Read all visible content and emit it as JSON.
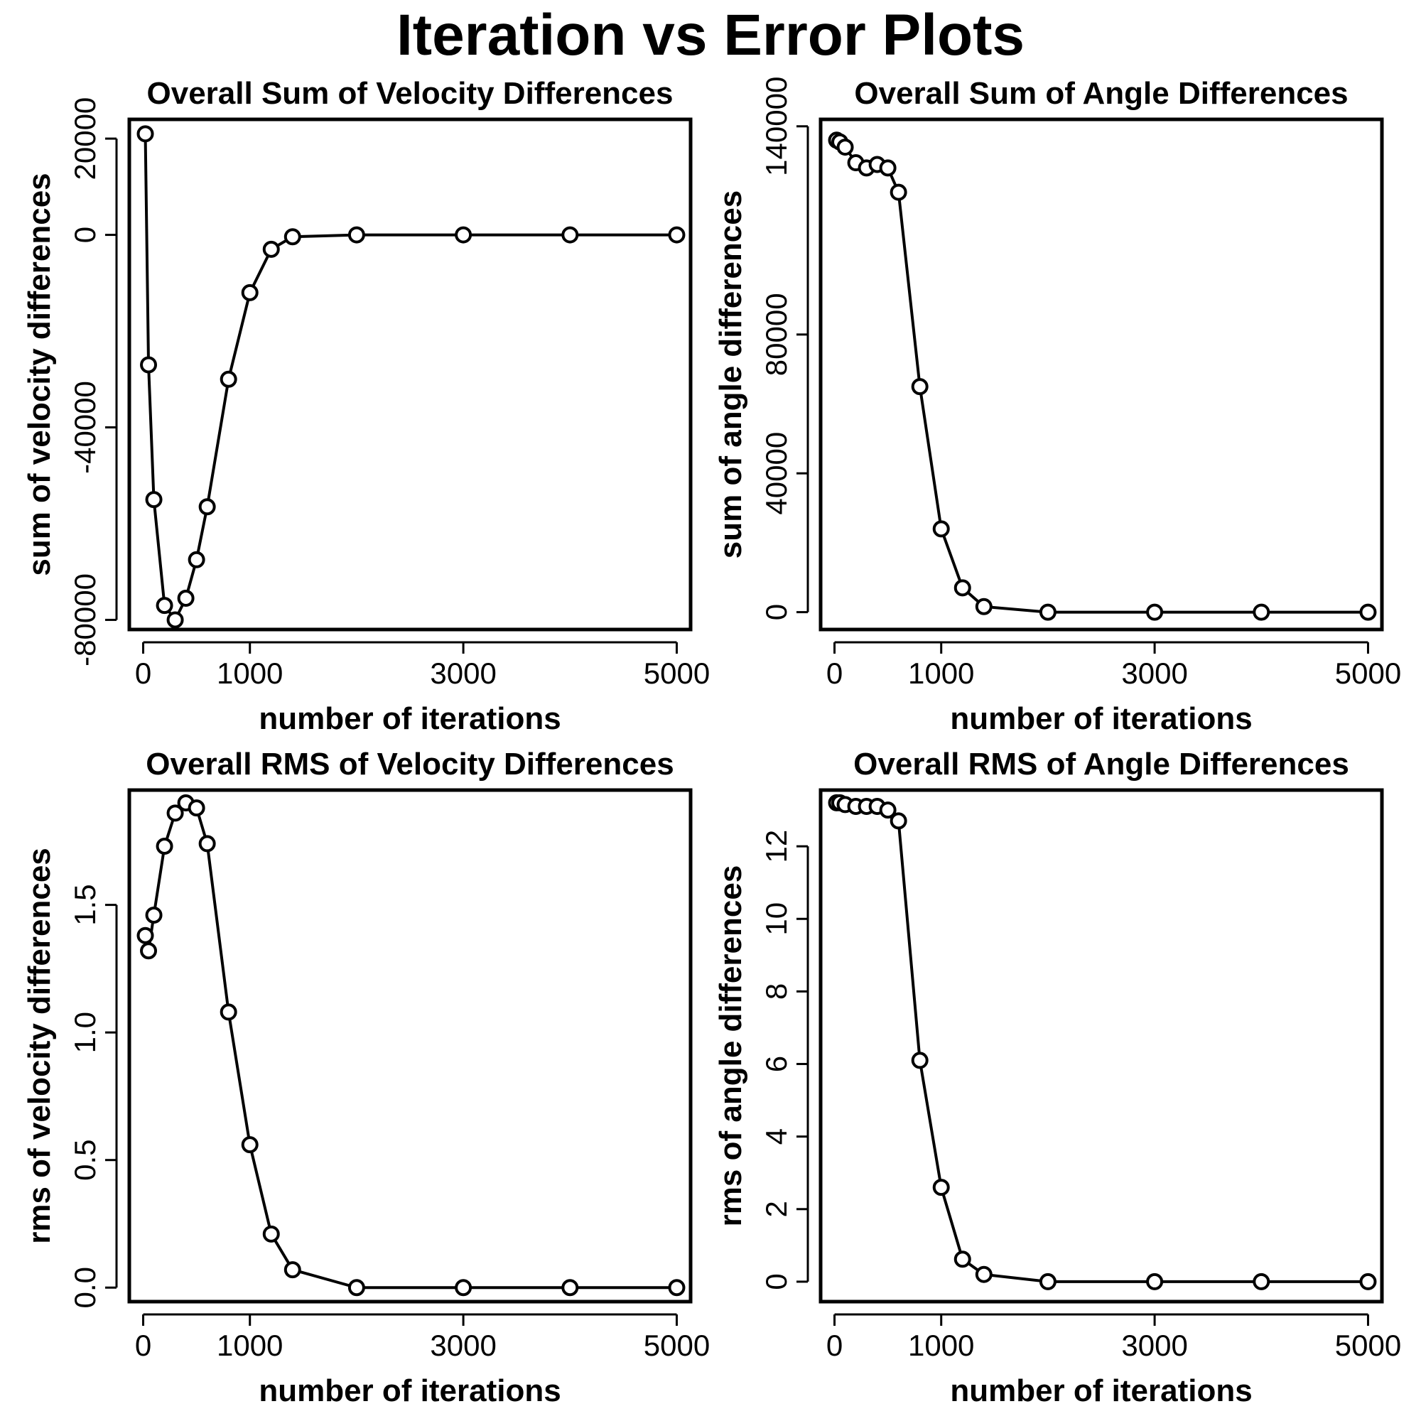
{
  "title": "Iteration vs Error Plots",
  "chart_data": [
    {
      "type": "line",
      "title": "Overall Sum of Velocity Differences",
      "xlabel": "number of iterations",
      "ylabel": "sum of velocity differences",
      "xlim": [
        -130,
        5130
      ],
      "ylim": [
        -82000,
        24000
      ],
      "xticks": [
        0,
        1000,
        3000,
        5000
      ],
      "xtick_labels": [
        "0",
        "1000",
        "3000",
        "5000"
      ],
      "yticks": [
        -80000,
        -40000,
        0,
        20000
      ],
      "ytick_labels": [
        "-80000",
        "-40000",
        "0",
        "20000"
      ],
      "grid": false,
      "series": [
        {
          "x": [
            20,
            50,
            100,
            200,
            300,
            400,
            500,
            600,
            800,
            1000,
            1200,
            1400,
            2000,
            3000,
            4000,
            5000
          ],
          "y": [
            21000,
            -27000,
            -55000,
            -77000,
            -80000,
            -75500,
            -67500,
            -56500,
            -30000,
            -12000,
            -3000,
            -400,
            0,
            0,
            0,
            0
          ]
        }
      ]
    },
    {
      "type": "line",
      "title": "Overall Sum of Angle Differences",
      "xlabel": "number of iterations",
      "ylabel": "sum of angle differences",
      "xlim": [
        -130,
        5130
      ],
      "ylim": [
        -5000,
        142000
      ],
      "xticks": [
        0,
        1000,
        3000,
        5000
      ],
      "xtick_labels": [
        "0",
        "1000",
        "3000",
        "5000"
      ],
      "yticks": [
        0,
        40000,
        80000,
        140000
      ],
      "ytick_labels": [
        "0",
        "40000",
        "80000",
        "140000"
      ],
      "grid": false,
      "series": [
        {
          "x": [
            20,
            50,
            100,
            200,
            300,
            400,
            500,
            600,
            800,
            1000,
            1200,
            1400,
            2000,
            3000,
            4000,
            5000
          ],
          "y": [
            136000,
            135500,
            134000,
            129500,
            128000,
            129000,
            128000,
            121000,
            65000,
            24000,
            7000,
            1600,
            0,
            0,
            0,
            0
          ]
        }
      ]
    },
    {
      "type": "line",
      "title": "Overall RMS of Velocity Differences",
      "xlabel": "number of iterations",
      "ylabel": "rms of velocity differences",
      "xlim": [
        -130,
        5130
      ],
      "ylim": [
        -0.055,
        1.95
      ],
      "xticks": [
        0,
        1000,
        3000,
        5000
      ],
      "xtick_labels": [
        "0",
        "1000",
        "3000",
        "5000"
      ],
      "yticks": [
        0.0,
        0.5,
        1.0,
        1.5
      ],
      "ytick_labels": [
        "0.0",
        "0.5",
        "1.0",
        "1.5"
      ],
      "grid": false,
      "series": [
        {
          "x": [
            20,
            50,
            100,
            200,
            300,
            400,
            500,
            600,
            800,
            1000,
            1200,
            1400,
            2000,
            3000,
            4000,
            5000
          ],
          "y": [
            1.38,
            1.32,
            1.46,
            1.73,
            1.86,
            1.9,
            1.88,
            1.74,
            1.08,
            0.56,
            0.21,
            0.07,
            0.0,
            0.0,
            0.0,
            0.0
          ]
        }
      ]
    },
    {
      "type": "line",
      "title": "Overall RMS of Angle Differences",
      "xlabel": "number of iterations",
      "ylabel": "rms of angle differences",
      "xlim": [
        -130,
        5130
      ],
      "ylim": [
        -0.55,
        13.55
      ],
      "xticks": [
        0,
        1000,
        3000,
        5000
      ],
      "xtick_labels": [
        "0",
        "1000",
        "3000",
        "5000"
      ],
      "yticks": [
        0,
        2,
        4,
        6,
        8,
        10,
        12
      ],
      "ytick_labels": [
        "0",
        "2",
        "4",
        "6",
        "8",
        "10",
        "12"
      ],
      "grid": false,
      "series": [
        {
          "x": [
            20,
            50,
            100,
            200,
            300,
            400,
            500,
            600,
            800,
            1000,
            1200,
            1400,
            2000,
            3000,
            4000,
            5000
          ],
          "y": [
            13.2,
            13.2,
            13.15,
            13.1,
            13.1,
            13.1,
            13.0,
            12.7,
            6.1,
            2.6,
            0.62,
            0.2,
            0.0,
            0.0,
            0.0,
            0.0
          ]
        }
      ]
    }
  ]
}
